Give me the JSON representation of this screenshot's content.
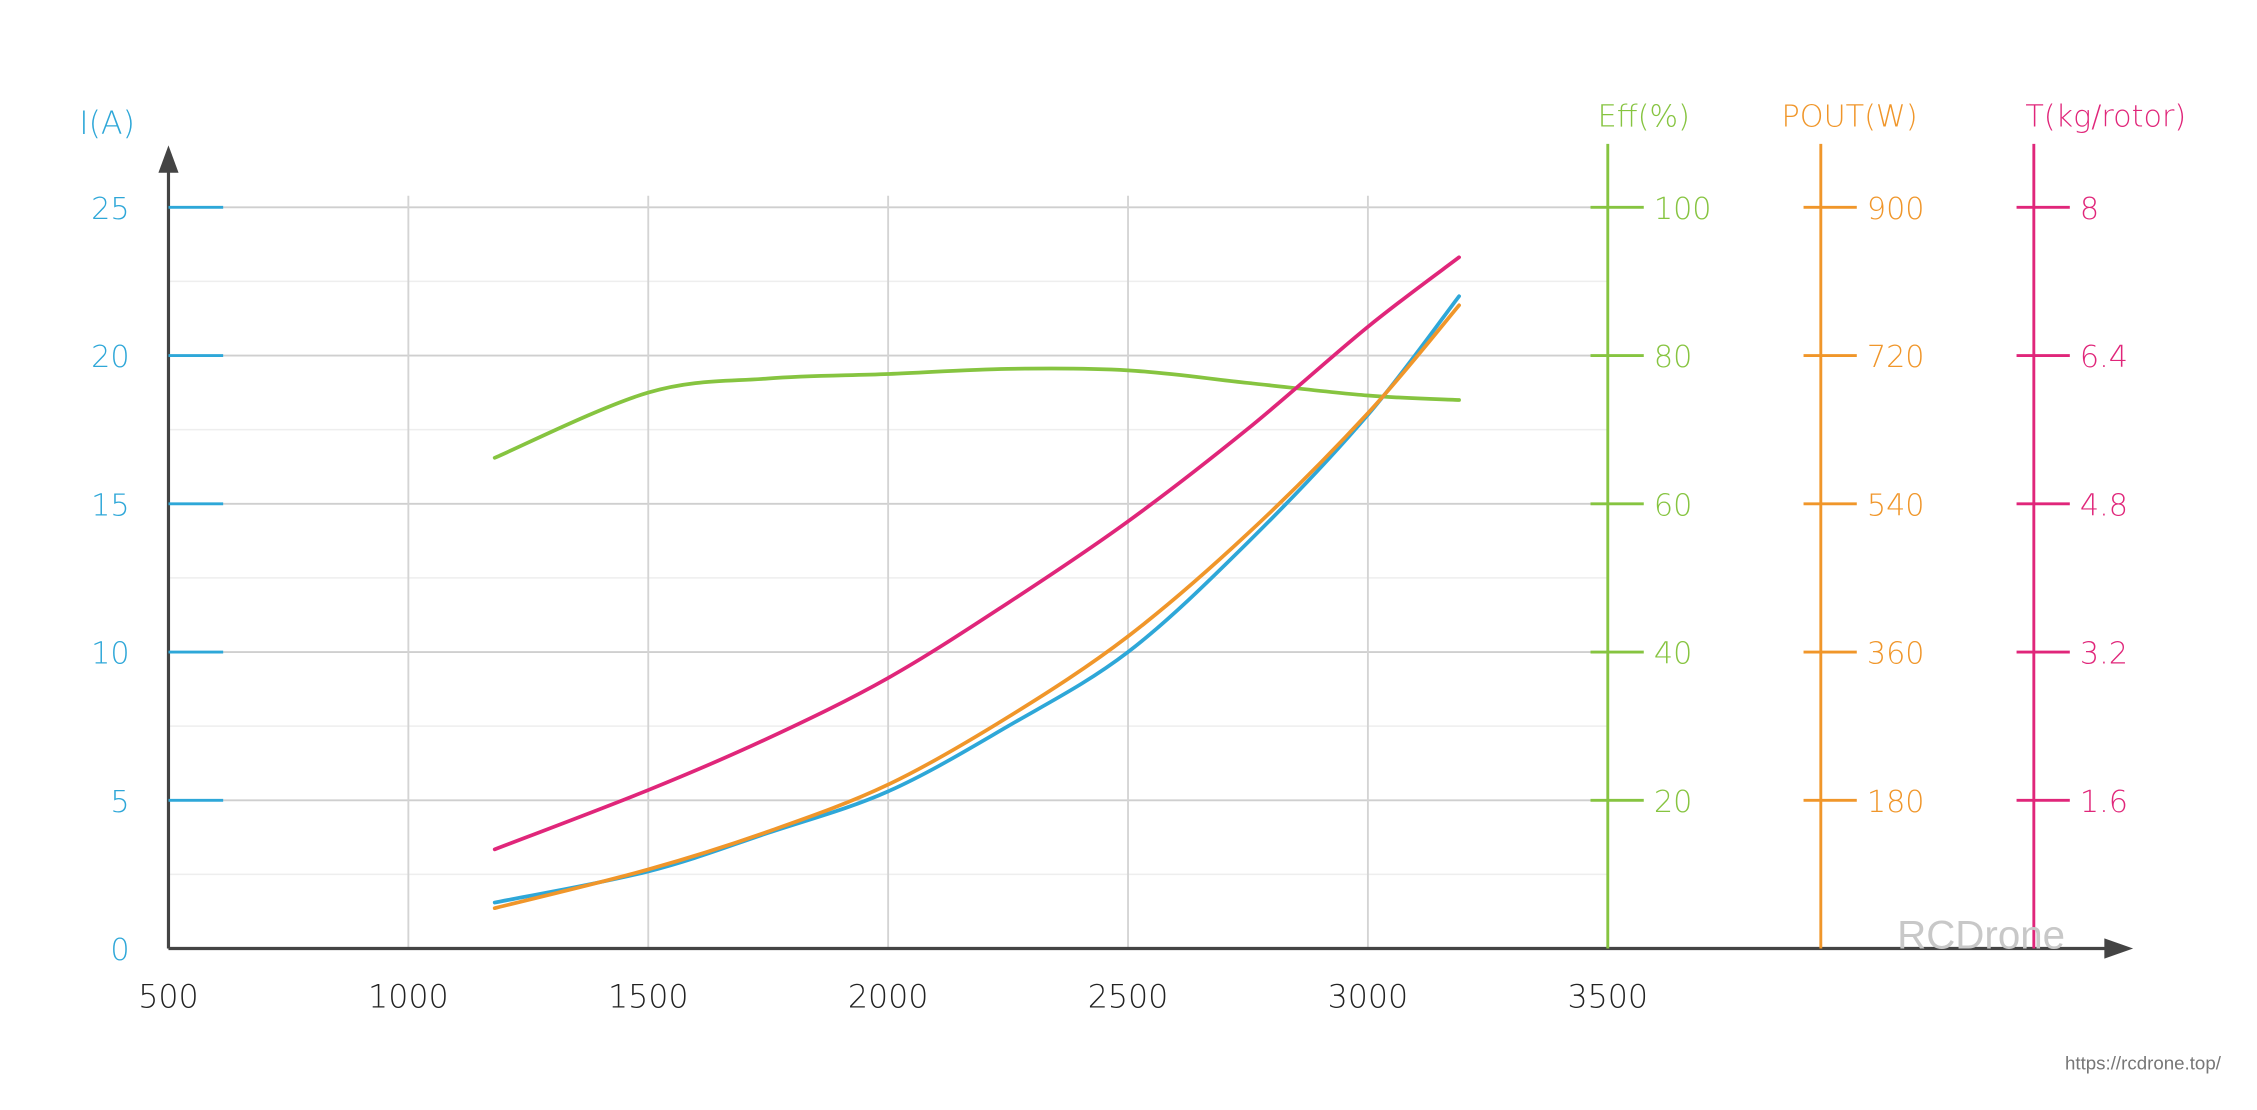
{
  "chart_data": {
    "type": "line",
    "xlim": [
      500,
      3500
    ],
    "x_ticks": [
      "500",
      "1000",
      "1500",
      "2000",
      "2500",
      "3000",
      "3500"
    ],
    "grid": true,
    "axes": [
      {
        "id": "I",
        "label": "I(A)",
        "color": "#2ea7d8",
        "range": [
          0,
          25
        ],
        "ticks": [
          "0",
          "5",
          "10",
          "15",
          "20",
          "25"
        ]
      },
      {
        "id": "Eff",
        "label": "Eff(%)",
        "color": "#86c440",
        "range": [
          0,
          100
        ],
        "ticks": [
          "20",
          "40",
          "60",
          "80",
          "100"
        ]
      },
      {
        "id": "POUT",
        "label": "POUT(W)",
        "color": "#f0962a",
        "range": [
          0,
          900
        ],
        "ticks": [
          "180",
          "360",
          "540",
          "720",
          "900"
        ]
      },
      {
        "id": "T",
        "label": "T(kg/rotor)",
        "color": "#e0267a",
        "range": [
          0,
          8
        ],
        "ticks": [
          "1.6",
          "3.2",
          "4.8",
          "6.4",
          "8"
        ]
      }
    ],
    "x": [
      1180,
      1500,
      1750,
      2000,
      2250,
      2500,
      2750,
      3000,
      3190
    ],
    "series": [
      {
        "axis": "Eff",
        "color": "#86c440",
        "values": [
          66.2,
          75.0,
          76.9,
          77.5,
          78.2,
          78.0,
          76.3,
          74.6,
          74.0
        ]
      },
      {
        "axis": "I",
        "color": "#2ea7d8",
        "values": [
          1.55,
          2.6,
          3.9,
          5.3,
          7.5,
          10.0,
          13.7,
          18.0,
          22.0
        ]
      },
      {
        "axis": "POUT",
        "color": "#f0962a",
        "values": [
          49,
          96,
          142,
          199,
          281,
          379,
          504,
          650,
          781
        ]
      },
      {
        "axis": "T",
        "color": "#e0267a",
        "values": [
          1.07,
          1.71,
          2.27,
          2.92,
          3.73,
          4.61,
          5.61,
          6.71,
          7.46
        ]
      }
    ]
  },
  "watermark": "RCDrone",
  "source_url": "https://rcdrone.top/"
}
